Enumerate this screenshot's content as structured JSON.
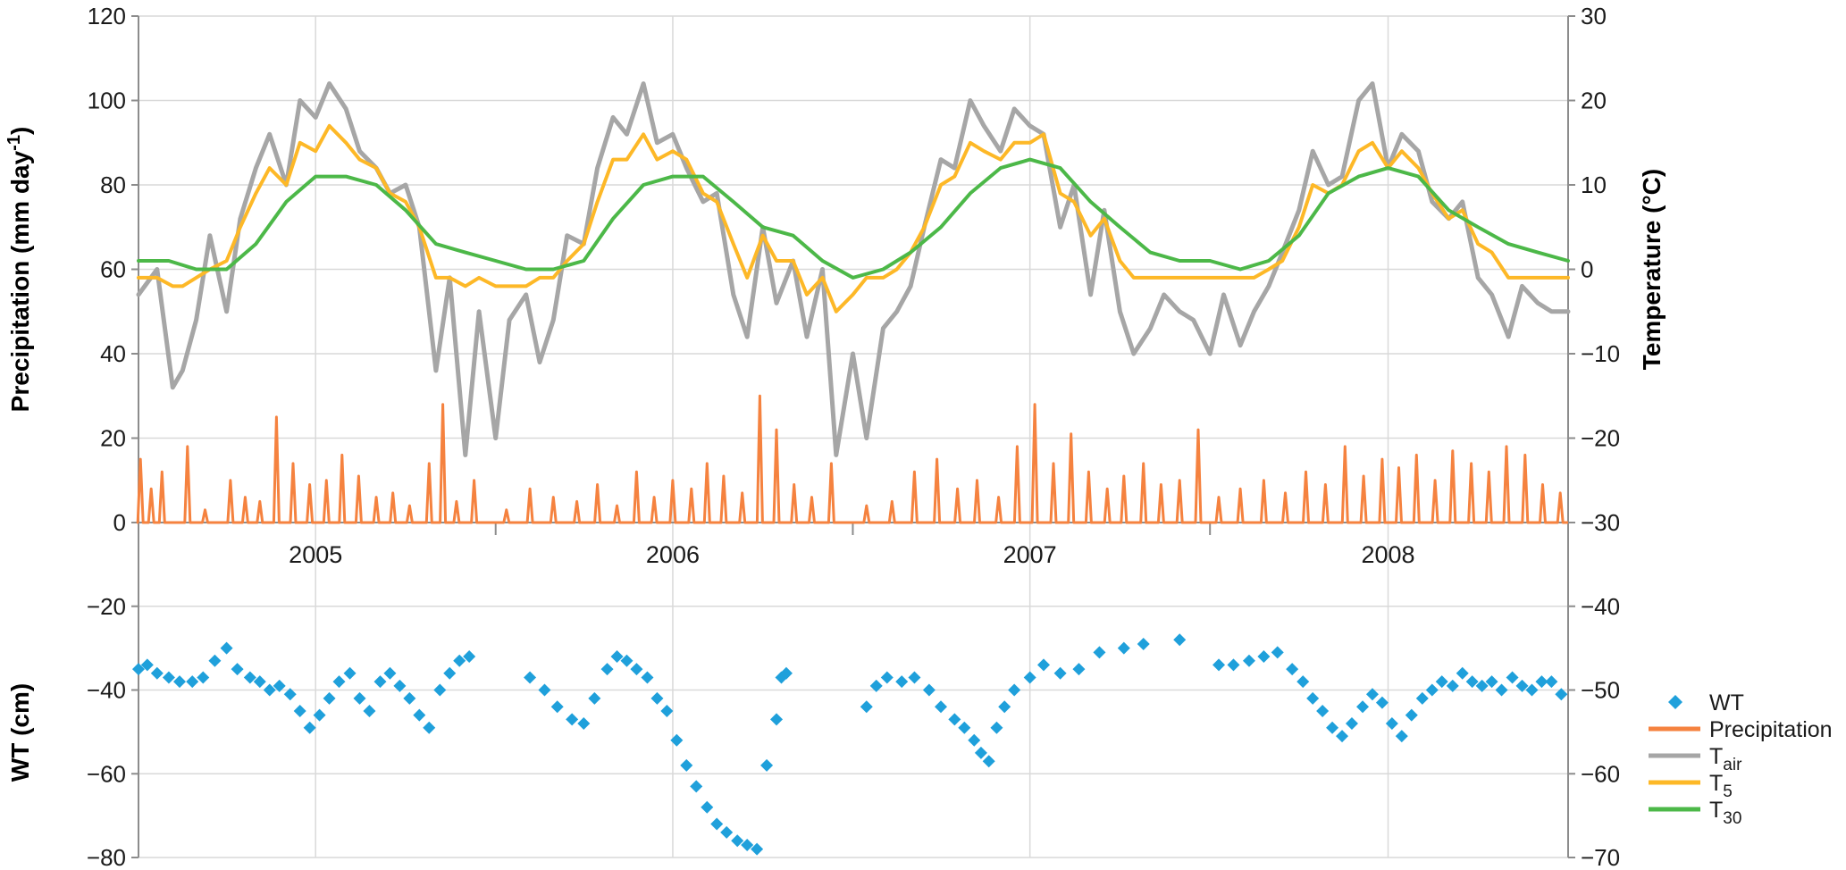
{
  "chart_data": {
    "type": "line",
    "axes": {
      "y_left_top": {
        "title": "Precipitation (mm day",
        "title_sup": "-1",
        "title_end": ")",
        "min": 0,
        "max": 120,
        "ticks": [
          "0",
          "20",
          "40",
          "60",
          "80",
          "100",
          "120"
        ]
      },
      "y_right_top": {
        "title": "Temperature (°C)",
        "min": -30,
        "max": 30,
        "ticks": [
          "−30",
          "−20",
          "−10",
          "0",
          "10",
          "20",
          "30"
        ]
      },
      "y_left_bottom": {
        "title": "WT (cm)",
        "min": -80,
        "max": 0,
        "ticks": [
          "0",
          "−20",
          "−40",
          "−60",
          "−80"
        ]
      },
      "y_right_bottom": {
        "min": -70,
        "max": -30,
        "ticks": [
          "−40",
          "−50",
          "−60",
          "−70"
        ]
      },
      "x": {
        "type": "date",
        "min": "2005-01-01",
        "max": "2009-01-01",
        "ticks": [
          "2005",
          "2006",
          "2007",
          "2008"
        ]
      }
    },
    "legend": {
      "position": "bottom-right",
      "entries": [
        {
          "key": "wt",
          "label": "WT",
          "sub": ""
        },
        {
          "key": "precip",
          "label": "Precipitation",
          "sub": ""
        },
        {
          "key": "tair",
          "label": "T",
          "sub": "air"
        },
        {
          "key": "t5",
          "label": "T",
          "sub": "5"
        },
        {
          "key": "t30",
          "label": "T",
          "sub": "30"
        }
      ]
    },
    "colors": {
      "wt": "#1fa0db",
      "precip": "#f5823f",
      "tair": "#a6a6a6",
      "t5": "#fdb827",
      "t30": "#4cb848",
      "grid": "#d9d9d9",
      "axis": "#8c8c8c"
    },
    "grid": true,
    "series": [
      {
        "name": "T",
        "name_sub": "air",
        "key": "tair",
        "axis": "temperature",
        "x": [
          "2005-01-01",
          "2005-01-20",
          "2005-02-05",
          "2005-02-15",
          "2005-03-01",
          "2005-03-15",
          "2005-04-01",
          "2005-04-15",
          "2005-05-01",
          "2005-05-15",
          "2005-06-01",
          "2005-06-15",
          "2005-07-01",
          "2005-07-15",
          "2005-08-01",
          "2005-08-15",
          "2005-09-01",
          "2005-09-15",
          "2005-10-01",
          "2005-10-15",
          "2005-11-01",
          "2005-11-15",
          "2005-12-01",
          "2005-12-15",
          "2006-01-01",
          "2006-01-15",
          "2006-02-01",
          "2006-02-15",
          "2006-03-01",
          "2006-03-15",
          "2006-04-01",
          "2006-04-15",
          "2006-05-01",
          "2006-05-15",
          "2006-06-01",
          "2006-06-15",
          "2006-07-01",
          "2006-07-15",
          "2006-08-01",
          "2006-08-15",
          "2006-09-01",
          "2006-09-15",
          "2006-10-01",
          "2006-10-15",
          "2006-11-01",
          "2006-11-15",
          "2006-12-01",
          "2006-12-15",
          "2007-01-01",
          "2007-01-15",
          "2007-02-01",
          "2007-02-15",
          "2007-03-01",
          "2007-03-15",
          "2007-04-01",
          "2007-04-15",
          "2007-05-01",
          "2007-05-15",
          "2007-06-01",
          "2007-06-15",
          "2007-07-01",
          "2007-07-15",
          "2007-08-01",
          "2007-08-15",
          "2007-09-01",
          "2007-09-15",
          "2007-10-01",
          "2007-10-15",
          "2007-11-01",
          "2007-11-15",
          "2007-12-01",
          "2007-12-15",
          "2008-01-01",
          "2008-01-15",
          "2008-02-01",
          "2008-02-15",
          "2008-03-01",
          "2008-03-15",
          "2008-04-01",
          "2008-04-15",
          "2008-05-01",
          "2008-05-15",
          "2008-06-01",
          "2008-06-15",
          "2008-07-01",
          "2008-07-15",
          "2008-08-01",
          "2008-08-15",
          "2008-09-01",
          "2008-09-15",
          "2008-10-01",
          "2008-10-15",
          "2008-11-01",
          "2008-11-15",
          "2008-12-01",
          "2008-12-15",
          "2009-01-01"
        ],
        "values": [
          -3,
          0,
          -14,
          -12,
          -6,
          4,
          -5,
          6,
          12,
          16,
          10,
          20,
          18,
          22,
          19,
          14,
          12,
          9,
          10,
          5,
          -12,
          -1,
          -22,
          -5,
          -20,
          -6,
          -3,
          -11,
          -6,
          4,
          3,
          12,
          18,
          16,
          22,
          15,
          16,
          12,
          8,
          9,
          -3,
          -8,
          5,
          -4,
          1,
          -8,
          0,
          -22,
          -10,
          -20,
          -7,
          -5,
          -2,
          5,
          13,
          12,
          20,
          17,
          14,
          19,
          17,
          16,
          5,
          10,
          -3,
          7,
          -5,
          -10,
          -7,
          -3,
          -5,
          -6,
          -10,
          -3,
          -9,
          -5,
          -2,
          2,
          7,
          14,
          10,
          11,
          20,
          22,
          12,
          16,
          14,
          8,
          6,
          8,
          -1,
          -3,
          -8,
          -2,
          -4,
          -5,
          -5
        ]
      },
      {
        "name": "T",
        "name_sub": "5",
        "key": "t5",
        "axis": "temperature",
        "x": [
          "2005-01-01",
          "2005-01-20",
          "2005-02-05",
          "2005-02-15",
          "2005-03-01",
          "2005-03-15",
          "2005-04-01",
          "2005-04-15",
          "2005-05-01",
          "2005-05-15",
          "2005-06-01",
          "2005-06-15",
          "2005-07-01",
          "2005-07-15",
          "2005-08-01",
          "2005-08-15",
          "2005-09-01",
          "2005-09-15",
          "2005-10-01",
          "2005-10-15",
          "2005-11-01",
          "2005-11-15",
          "2005-12-01",
          "2005-12-15",
          "2006-01-01",
          "2006-01-15",
          "2006-02-01",
          "2006-02-15",
          "2006-03-01",
          "2006-03-15",
          "2006-04-01",
          "2006-04-15",
          "2006-05-01",
          "2006-05-15",
          "2006-06-01",
          "2006-06-15",
          "2006-07-01",
          "2006-07-15",
          "2006-08-01",
          "2006-08-15",
          "2006-09-01",
          "2006-09-15",
          "2006-10-01",
          "2006-10-15",
          "2006-11-01",
          "2006-11-15",
          "2006-12-01",
          "2006-12-15",
          "2007-01-01",
          "2007-01-15",
          "2007-02-01",
          "2007-02-15",
          "2007-03-01",
          "2007-03-15",
          "2007-04-01",
          "2007-04-15",
          "2007-05-01",
          "2007-05-15",
          "2007-06-01",
          "2007-06-15",
          "2007-07-01",
          "2007-07-15",
          "2007-08-01",
          "2007-08-15",
          "2007-09-01",
          "2007-09-15",
          "2007-10-01",
          "2007-10-15",
          "2007-11-01",
          "2007-11-15",
          "2007-12-01",
          "2007-12-15",
          "2008-01-01",
          "2008-01-15",
          "2008-02-01",
          "2008-02-15",
          "2008-03-01",
          "2008-03-15",
          "2008-04-01",
          "2008-04-15",
          "2008-05-01",
          "2008-05-15",
          "2008-06-01",
          "2008-06-15",
          "2008-07-01",
          "2008-07-15",
          "2008-08-01",
          "2008-08-15",
          "2008-09-01",
          "2008-09-15",
          "2008-10-01",
          "2008-10-15",
          "2008-11-01",
          "2008-11-15",
          "2008-12-01",
          "2008-12-15",
          "2009-01-01"
        ],
        "values": [
          -1,
          -1,
          -2,
          -2,
          -1,
          0,
          1,
          5,
          9,
          12,
          10,
          15,
          14,
          17,
          15,
          13,
          12,
          9,
          8,
          5,
          -1,
          -1,
          -2,
          -1,
          -2,
          -2,
          -2,
          -1,
          -1,
          1,
          3,
          8,
          13,
          13,
          16,
          13,
          14,
          13,
          9,
          8,
          3,
          -1,
          4,
          1,
          1,
          -3,
          -1,
          -5,
          -3,
          -1,
          -1,
          0,
          2,
          5,
          10,
          11,
          15,
          14,
          13,
          15,
          15,
          16,
          9,
          8,
          4,
          6,
          1,
          -1,
          -1,
          -1,
          -1,
          -1,
          -1,
          -1,
          -1,
          -1,
          0,
          1,
          5,
          10,
          9,
          10,
          14,
          15,
          12,
          14,
          12,
          9,
          6,
          7,
          3,
          2,
          -1,
          -1,
          -1,
          -1,
          -1
        ]
      },
      {
        "name": "T",
        "name_sub": "30",
        "key": "t30",
        "axis": "temperature",
        "x": [
          "2005-01-01",
          "2005-02-01",
          "2005-03-01",
          "2005-04-01",
          "2005-05-01",
          "2005-06-01",
          "2005-07-01",
          "2005-08-01",
          "2005-09-01",
          "2005-10-01",
          "2005-11-01",
          "2005-12-01",
          "2006-01-01",
          "2006-02-01",
          "2006-03-01",
          "2006-04-01",
          "2006-05-01",
          "2006-06-01",
          "2006-07-01",
          "2006-08-01",
          "2006-09-01",
          "2006-10-01",
          "2006-11-01",
          "2006-12-01",
          "2007-01-01",
          "2007-02-01",
          "2007-03-01",
          "2007-04-01",
          "2007-05-01",
          "2007-06-01",
          "2007-07-01",
          "2007-08-01",
          "2007-09-01",
          "2007-10-01",
          "2007-11-01",
          "2007-12-01",
          "2008-01-01",
          "2008-02-01",
          "2008-03-01",
          "2008-04-01",
          "2008-05-01",
          "2008-06-01",
          "2008-07-01",
          "2008-08-01",
          "2008-09-01",
          "2008-10-01",
          "2008-11-01",
          "2008-12-01",
          "2009-01-01"
        ],
        "values": [
          1,
          1,
          0,
          0,
          3,
          8,
          11,
          11,
          10,
          7,
          3,
          2,
          1,
          0,
          0,
          1,
          6,
          10,
          11,
          11,
          8,
          5,
          4,
          1,
          -1,
          0,
          2,
          5,
          9,
          12,
          13,
          12,
          8,
          5,
          2,
          1,
          1,
          0,
          1,
          4,
          9,
          11,
          12,
          11,
          7,
          5,
          3,
          2,
          1
        ]
      },
      {
        "name": "Precipitation",
        "key": "precip",
        "axis": "precipitation",
        "x": [
          "2005-01-03",
          "2005-01-14",
          "2005-01-25",
          "2005-02-20",
          "2005-03-10",
          "2005-04-05",
          "2005-04-20",
          "2005-05-05",
          "2005-05-22",
          "2005-06-08",
          "2005-06-25",
          "2005-07-12",
          "2005-07-28",
          "2005-08-14",
          "2005-09-01",
          "2005-09-18",
          "2005-10-05",
          "2005-10-25",
          "2005-11-08",
          "2005-11-22",
          "2005-12-10",
          "2006-01-12",
          "2006-02-05",
          "2006-03-01",
          "2006-03-25",
          "2006-04-15",
          "2006-05-05",
          "2006-05-25",
          "2006-06-12",
          "2006-07-01",
          "2006-07-20",
          "2006-08-05",
          "2006-08-22",
          "2006-09-10",
          "2006-09-28",
          "2006-10-15",
          "2006-11-02",
          "2006-11-20",
          "2006-12-10",
          "2007-01-15",
          "2007-02-10",
          "2007-03-05",
          "2007-03-28",
          "2007-04-18",
          "2007-05-08",
          "2007-05-30",
          "2007-06-18",
          "2007-07-06",
          "2007-07-25",
          "2007-08-12",
          "2007-08-30",
          "2007-09-18",
          "2007-10-05",
          "2007-10-25",
          "2007-11-12",
          "2007-12-01",
          "2007-12-20",
          "2008-01-10",
          "2008-02-01",
          "2008-02-25",
          "2008-03-18",
          "2008-04-08",
          "2008-04-28",
          "2008-05-18",
          "2008-06-06",
          "2008-06-25",
          "2008-07-12",
          "2008-07-30",
          "2008-08-18",
          "2008-09-05",
          "2008-09-24",
          "2008-10-12",
          "2008-10-30",
          "2008-11-18",
          "2008-12-06",
          "2008-12-24"
        ],
        "values": [
          15,
          8,
          12,
          18,
          3,
          10,
          6,
          5,
          25,
          14,
          9,
          10,
          16,
          11,
          6,
          7,
          4,
          14,
          28,
          5,
          10,
          3,
          8,
          6,
          5,
          9,
          4,
          12,
          6,
          10,
          8,
          14,
          11,
          7,
          30,
          22,
          9,
          6,
          14,
          4,
          5,
          12,
          15,
          8,
          10,
          6,
          18,
          28,
          14,
          21,
          12,
          8,
          11,
          14,
          9,
          10,
          22,
          6,
          8,
          10,
          7,
          12,
          9,
          18,
          11,
          15,
          13,
          16,
          10,
          17,
          14,
          12,
          18,
          16,
          9,
          7
        ]
      },
      {
        "name": "WT",
        "key": "wt",
        "axis": "wt",
        "marker": "diamond",
        "x": [
          "2005-01-01",
          "2005-01-10",
          "2005-01-20",
          "2005-02-01",
          "2005-02-12",
          "2005-02-25",
          "2005-03-08",
          "2005-03-20",
          "2005-04-01",
          "2005-04-12",
          "2005-04-25",
          "2005-05-05",
          "2005-05-15",
          "2005-05-25",
          "2005-06-05",
          "2005-06-15",
          "2005-06-25",
          "2005-07-05",
          "2005-07-15",
          "2005-07-25",
          "2005-08-05",
          "2005-08-15",
          "2005-08-25",
          "2005-09-05",
          "2005-09-15",
          "2005-09-25",
          "2005-10-05",
          "2005-10-15",
          "2005-10-25",
          "2005-11-05",
          "2005-11-15",
          "2005-11-25",
          "2005-12-05",
          "2006-02-05",
          "2006-02-20",
          "2006-03-05",
          "2006-03-20",
          "2006-04-01",
          "2006-04-12",
          "2006-04-25",
          "2006-05-05",
          "2006-05-15",
          "2006-05-25",
          "2006-06-05",
          "2006-06-15",
          "2006-06-25",
          "2006-07-05",
          "2006-07-15",
          "2006-07-25",
          "2006-08-05",
          "2006-08-15",
          "2006-08-25",
          "2006-09-05",
          "2006-09-15",
          "2006-09-25",
          "2006-10-05",
          "2006-10-15",
          "2006-10-20",
          "2006-10-25",
          "2007-01-15",
          "2007-01-25",
          "2007-02-05",
          "2007-02-20",
          "2007-03-05",
          "2007-03-20",
          "2007-04-01",
          "2007-04-15",
          "2007-04-25",
          "2007-05-05",
          "2007-05-12",
          "2007-05-20",
          "2007-05-28",
          "2007-06-05",
          "2007-06-15",
          "2007-07-01",
          "2007-07-15",
          "2007-08-01",
          "2007-08-20",
          "2007-09-10",
          "2007-10-05",
          "2007-10-25",
          "2007-12-01",
          "2008-01-10",
          "2008-01-25",
          "2008-02-10",
          "2008-02-25",
          "2008-03-10",
          "2008-03-25",
          "2008-04-05",
          "2008-04-15",
          "2008-04-25",
          "2008-05-05",
          "2008-05-15",
          "2008-05-25",
          "2008-06-05",
          "2008-06-15",
          "2008-06-25",
          "2008-07-05",
          "2008-07-15",
          "2008-07-25",
          "2008-08-05",
          "2008-08-15",
          "2008-08-25",
          "2008-09-05",
          "2008-09-15",
          "2008-09-25",
          "2008-10-05",
          "2008-10-15",
          "2008-10-25",
          "2008-11-05",
          "2008-11-15",
          "2008-11-25",
          "2008-12-05",
          "2008-12-15",
          "2008-12-25"
        ],
        "values": [
          -35,
          -34,
          -36,
          -37,
          -38,
          -38,
          -37,
          -33,
          -30,
          -35,
          -37,
          -38,
          -40,
          -39,
          -41,
          -45,
          -49,
          -46,
          -42,
          -38,
          -36,
          -42,
          -45,
          -38,
          -36,
          -39,
          -42,
          -46,
          -49,
          -40,
          -36,
          -33,
          -32,
          -37,
          -40,
          -44,
          -47,
          -48,
          -42,
          -35,
          -32,
          -33,
          -35,
          -37,
          -42,
          -45,
          -52,
          -58,
          -63,
          -68,
          -72,
          -74,
          -76,
          -77,
          -78,
          -58,
          -47,
          -37,
          -36,
          -44,
          -39,
          -37,
          -38,
          -37,
          -40,
          -44,
          -47,
          -49,
          -52,
          -55,
          -57,
          -49,
          -44,
          -40,
          -37,
          -34,
          -36,
          -35,
          -31,
          -30,
          -29,
          -28,
          -34,
          -34,
          -33,
          -32,
          -31,
          -35,
          -38,
          -42,
          -45,
          -49,
          -51,
          -48,
          -44,
          -41,
          -43,
          -48,
          -51,
          -46,
          -42,
          -40,
          -38,
          -39,
          -36,
          -38,
          -39,
          -38,
          -40,
          -37,
          -39,
          -40,
          -38,
          -38,
          -41
        ]
      }
    ]
  }
}
